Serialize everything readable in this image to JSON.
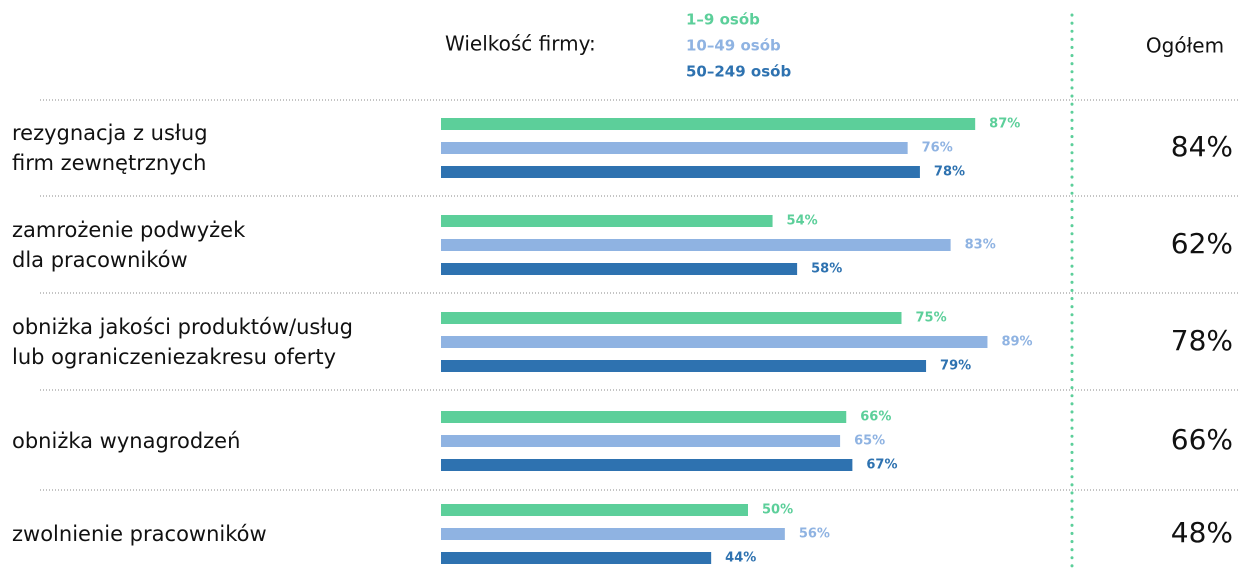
{
  "chart_data": {
    "type": "bar",
    "orientation": "horizontal",
    "legend_title": "Wielkość firmy:",
    "categories": [
      "rezygnacja z usług\nfirm zewnętrznych",
      "zamrożenie podwyżek\ndla pracowników",
      "obniżka jakości produktów/usług\nlub ograniczeniezakresu oferty",
      "obniżka wynagrodzeń",
      "zwolnienie pracowników"
    ],
    "series": [
      {
        "name": "1–9 osób",
        "color": "#5ccf9a",
        "values": [
          87,
          54,
          75,
          66,
          50
        ],
        "value_labels": [
          "87%",
          "54%",
          "75%",
          "66%",
          "50%"
        ]
      },
      {
        "name": "10–49 osób",
        "color": "#8fb3e2",
        "values": [
          76,
          83,
          89,
          65,
          56
        ],
        "value_labels": [
          "76%",
          "83%",
          "89%",
          "65%",
          "56%"
        ]
      },
      {
        "name": "50–249 osób",
        "color": "#2e72b0",
        "values": [
          78,
          58,
          79,
          67,
          44
        ],
        "value_labels": [
          "78%",
          "58%",
          "79%",
          "67%",
          "44%"
        ]
      }
    ],
    "xlim": [
      0,
      100
    ],
    "total_title": "Ogółem",
    "totals": [
      84,
      62,
      78,
      66,
      48
    ],
    "total_labels": [
      "84%",
      "62%",
      "78%",
      "66%",
      "48%"
    ]
  }
}
